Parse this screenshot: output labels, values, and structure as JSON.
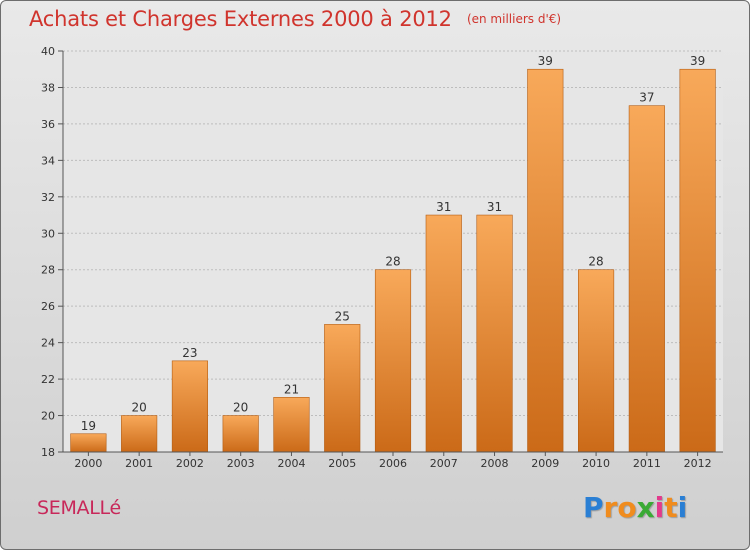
{
  "chart_data": {
    "type": "bar",
    "title": "Achats et Charges Externes 2000 à 2012",
    "unit": "(en milliers d'€)",
    "categories": [
      "2000",
      "2001",
      "2002",
      "2003",
      "2004",
      "2005",
      "2006",
      "2007",
      "2008",
      "2009",
      "2010",
      "2011",
      "2012"
    ],
    "values": [
      19,
      20,
      23,
      20,
      21,
      25,
      28,
      31,
      31,
      39,
      28,
      37,
      39
    ],
    "data_labels": [
      "19",
      "20",
      "23",
      "20",
      "21",
      "25",
      "28",
      "31",
      "31",
      "39",
      "28",
      "37",
      "39"
    ],
    "ylim": [
      18,
      40
    ],
    "yticks": [
      18,
      20,
      22,
      24,
      26,
      28,
      30,
      32,
      34,
      36,
      38,
      40
    ],
    "grid": true,
    "bar_color": "#f0903a",
    "xlabel": "",
    "ylabel": ""
  },
  "commune": "SEMALLé",
  "logo": {
    "letters": [
      "P",
      "r",
      "o",
      "x",
      "i",
      "t",
      "i"
    ],
    "colors": [
      "#2a7fd4",
      "#f08c1e",
      "#f08c1e",
      "#3aaa35",
      "#e23a8c",
      "#f08c1e",
      "#2a7fd4"
    ]
  }
}
